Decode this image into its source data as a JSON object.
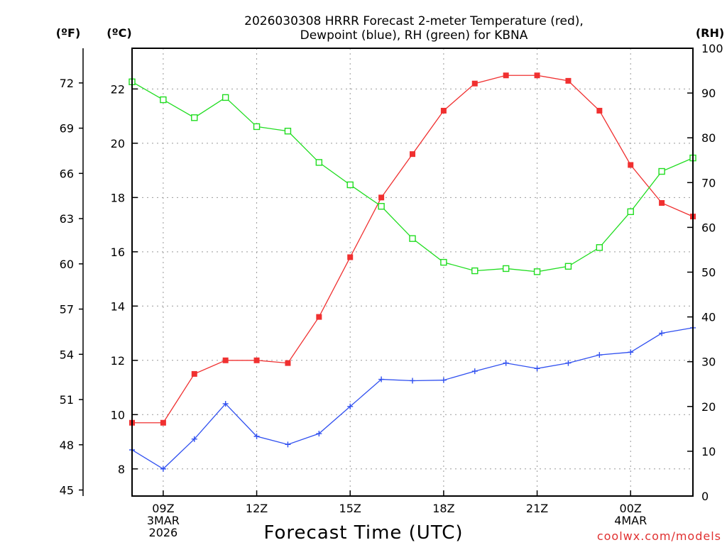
{
  "chart_data": {
    "type": "line",
    "title": [
      "2026030308 HRRR Forecast 2-meter Temperature (red),",
      "Dewpoint (blue), RH (green) for KBNA"
    ],
    "xlabel": "Forecast Time (UTC)",
    "credit": "coolwx.com/models",
    "x_hours": [
      8,
      9,
      10,
      11,
      12,
      13,
      14,
      15,
      16,
      17,
      18,
      19,
      20,
      21,
      22,
      23,
      24,
      25,
      26
    ],
    "x_ticks": [
      {
        "hour": 9,
        "lines": [
          "09Z",
          "3MAR",
          "2026"
        ]
      },
      {
        "hour": 12,
        "lines": [
          "12Z"
        ]
      },
      {
        "hour": 15,
        "lines": [
          "15Z"
        ]
      },
      {
        "hour": 18,
        "lines": [
          "18Z"
        ]
      },
      {
        "hour": 21,
        "lines": [
          "21Z"
        ]
      },
      {
        "hour": 24,
        "lines": [
          "00Z",
          "4MAR"
        ]
      }
    ],
    "xlim": [
      8,
      26
    ],
    "ylim_celsius": [
      7,
      23.5
    ],
    "ylim_rh": [
      0,
      100
    ],
    "left_outer_unit": "(ºF)",
    "left_inner_unit": "(ºC)",
    "right_unit": "(RH)",
    "fahrenheit_ticks": [
      45,
      48,
      51,
      54,
      57,
      60,
      63,
      66,
      69,
      72
    ],
    "celsius_ticks": [
      8,
      10,
      12,
      14,
      16,
      18,
      20,
      22
    ],
    "rh_ticks": [
      0,
      10,
      20,
      30,
      40,
      50,
      60,
      70,
      80,
      90,
      100
    ],
    "series": [
      {
        "name": "2-meter Temperature",
        "color": "#f03030",
        "marker": "filled-square",
        "unit": "celsius",
        "values": [
          9.7,
          9.7,
          11.5,
          12.0,
          12.0,
          11.9,
          13.6,
          15.8,
          18.0,
          19.6,
          21.2,
          22.2,
          22.5,
          22.5,
          22.3,
          21.2,
          19.2,
          17.8,
          17.3
        ]
      },
      {
        "name": "Dewpoint",
        "color": "#3050f0",
        "marker": "plus",
        "unit": "celsius",
        "values": [
          8.7,
          8.0,
          9.1,
          10.4,
          9.2,
          8.9,
          9.3,
          10.3,
          11.3,
          11.25,
          11.27,
          11.6,
          11.9,
          11.7,
          11.9,
          12.2,
          12.3,
          13.0,
          13.2
        ]
      },
      {
        "name": "RH",
        "color": "#20dd20",
        "marker": "open-square",
        "unit": "percent",
        "values": [
          92.5,
          88.5,
          84.5,
          89.0,
          82.5,
          81.5,
          74.5,
          69.5,
          64.7,
          57.5,
          52.2,
          50.3,
          50.8,
          50.1,
          51.3,
          55.5,
          63.5,
          72.5,
          75.5
        ]
      }
    ]
  }
}
